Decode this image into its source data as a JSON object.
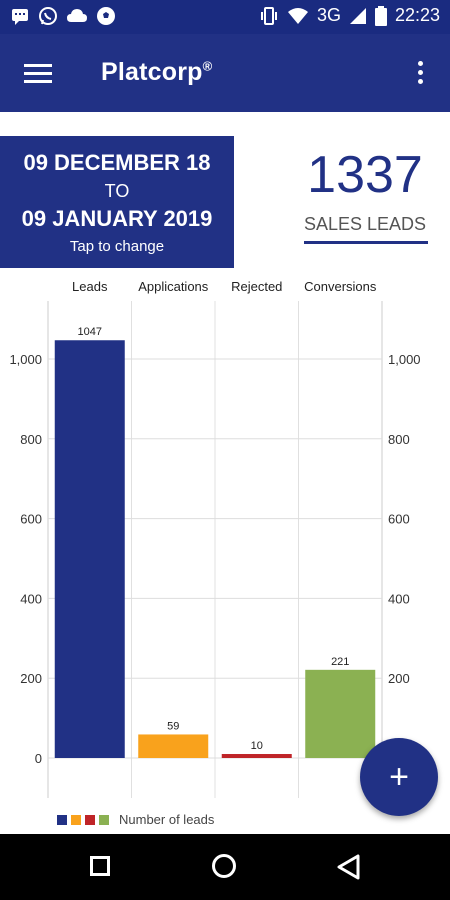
{
  "status_bar": {
    "network": "3G",
    "time": "22:23"
  },
  "app_bar": {
    "title": "Platcorp",
    "title_mark": "®"
  },
  "date_range": {
    "start": "09 DECEMBER 18",
    "separator": "TO",
    "end": "09 JANUARY 2019",
    "hint": "Tap to change"
  },
  "summary": {
    "count": "1337",
    "label": "SALES LEADS"
  },
  "chart_data": {
    "type": "bar",
    "categories": [
      "Leads",
      "Applications",
      "Rejected",
      "Conversions"
    ],
    "values": [
      1047,
      59,
      10,
      221
    ],
    "colors": [
      "#213185",
      "#f9a21c",
      "#bf2428",
      "#8bb152"
    ],
    "ylim": [
      0,
      1100
    ],
    "yticks": [
      0,
      200,
      400,
      600,
      800,
      1000
    ],
    "ytick_labels": [
      "0",
      "200",
      "400",
      "600",
      "800",
      "1,000"
    ],
    "grid": true,
    "legend": {
      "position": "bottom-left",
      "label": "Number of leads"
    }
  },
  "fab": {
    "label": "+"
  },
  "colors": {
    "primary": "#213185",
    "status": "#1a2b80"
  }
}
